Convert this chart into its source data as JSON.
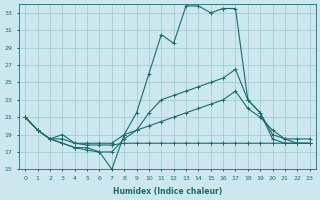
{
  "xlabel": "Humidex (Indice chaleur)",
  "bg_color": "#cce8ee",
  "grid_color": "#99cccc",
  "line_color": "#1a6b6b",
  "xlim": [
    -0.5,
    23.5
  ],
  "ylim": [
    15,
    34
  ],
  "yticks": [
    15,
    17,
    19,
    21,
    23,
    25,
    27,
    29,
    31,
    33
  ],
  "xticks": [
    0,
    1,
    2,
    3,
    4,
    5,
    6,
    7,
    8,
    9,
    10,
    11,
    12,
    13,
    14,
    15,
    16,
    17,
    18,
    19,
    20,
    21,
    22,
    23
  ],
  "series": [
    [
      21.0,
      19.5,
      18.5,
      18.0,
      17.5,
      17.2,
      17.0,
      15.0,
      19.0,
      21.5,
      26.0,
      30.5,
      29.5,
      33.8,
      33.8,
      33.0,
      33.5,
      33.5,
      23.0,
      21.5,
      18.5,
      18.0,
      18.0,
      18.0
    ],
    [
      21.0,
      19.5,
      18.5,
      18.0,
      17.5,
      17.5,
      17.0,
      17.0,
      18.5,
      19.5,
      21.5,
      23.0,
      23.5,
      24.0,
      24.5,
      25.0,
      25.5,
      26.5,
      23.0,
      21.5,
      19.0,
      18.5,
      18.0,
      18.0
    ],
    [
      21.0,
      19.5,
      18.5,
      19.0,
      18.0,
      18.0,
      18.0,
      18.0,
      19.0,
      19.5,
      20.0,
      20.5,
      21.0,
      21.5,
      22.0,
      22.5,
      23.0,
      24.0,
      22.0,
      21.0,
      19.5,
      18.5,
      18.5,
      18.5
    ],
    [
      21.0,
      19.5,
      18.5,
      18.5,
      18.0,
      17.8,
      17.8,
      17.8,
      18.0,
      18.0,
      18.0,
      18.0,
      18.0,
      18.0,
      18.0,
      18.0,
      18.0,
      18.0,
      18.0,
      18.0,
      18.0,
      18.0,
      18.0,
      18.0
    ]
  ],
  "marker": "+"
}
